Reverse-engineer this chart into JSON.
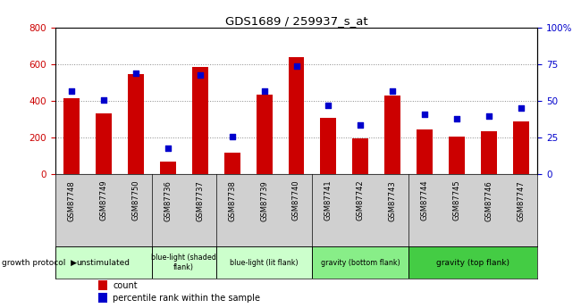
{
  "title": "GDS1689 / 259937_s_at",
  "samples": [
    "GSM87748",
    "GSM87749",
    "GSM87750",
    "GSM87736",
    "GSM87737",
    "GSM87738",
    "GSM87739",
    "GSM87740",
    "GSM87741",
    "GSM87742",
    "GSM87743",
    "GSM87744",
    "GSM87745",
    "GSM87746",
    "GSM87747"
  ],
  "counts": [
    415,
    335,
    545,
    68,
    585,
    120,
    435,
    640,
    310,
    195,
    430,
    245,
    205,
    235,
    290
  ],
  "percentiles": [
    57,
    51,
    69,
    18,
    68,
    26,
    57,
    74,
    47,
    34,
    57,
    41,
    38,
    40,
    45
  ],
  "groups": [
    {
      "label": "unstimulated",
      "start": 0,
      "end": 3,
      "color": "#ccffcc"
    },
    {
      "label": "blue-light (shaded\nflank)",
      "start": 3,
      "end": 5,
      "color": "#ccffcc"
    },
    {
      "label": "blue-light (lit flank)",
      "start": 5,
      "end": 8,
      "color": "#ccffcc"
    },
    {
      "label": "gravity (bottom flank)",
      "start": 8,
      "end": 11,
      "color": "#88ee88"
    },
    {
      "label": "gravity (top flank)",
      "start": 11,
      "end": 15,
      "color": "#44cc44"
    }
  ],
  "group_separators": [
    3,
    5,
    8,
    11
  ],
  "bar_color": "#cc0000",
  "dot_color": "#0000cc",
  "left_ylim": [
    0,
    800
  ],
  "right_ylim": [
    0,
    100
  ],
  "left_yticks": [
    0,
    200,
    400,
    600,
    800
  ],
  "right_yticks": [
    0,
    25,
    50,
    75,
    100
  ],
  "right_yticklabels": [
    "0",
    "25",
    "50",
    "75",
    "100%"
  ],
  "growth_protocol_label": "growth protocol",
  "legend_count_label": "count",
  "legend_percentile_label": "percentile rank within the sample",
  "xtick_bg_color": "#d0d0d0",
  "plot_bg_color": "#ffffff",
  "fig_bg_color": "#ffffff"
}
